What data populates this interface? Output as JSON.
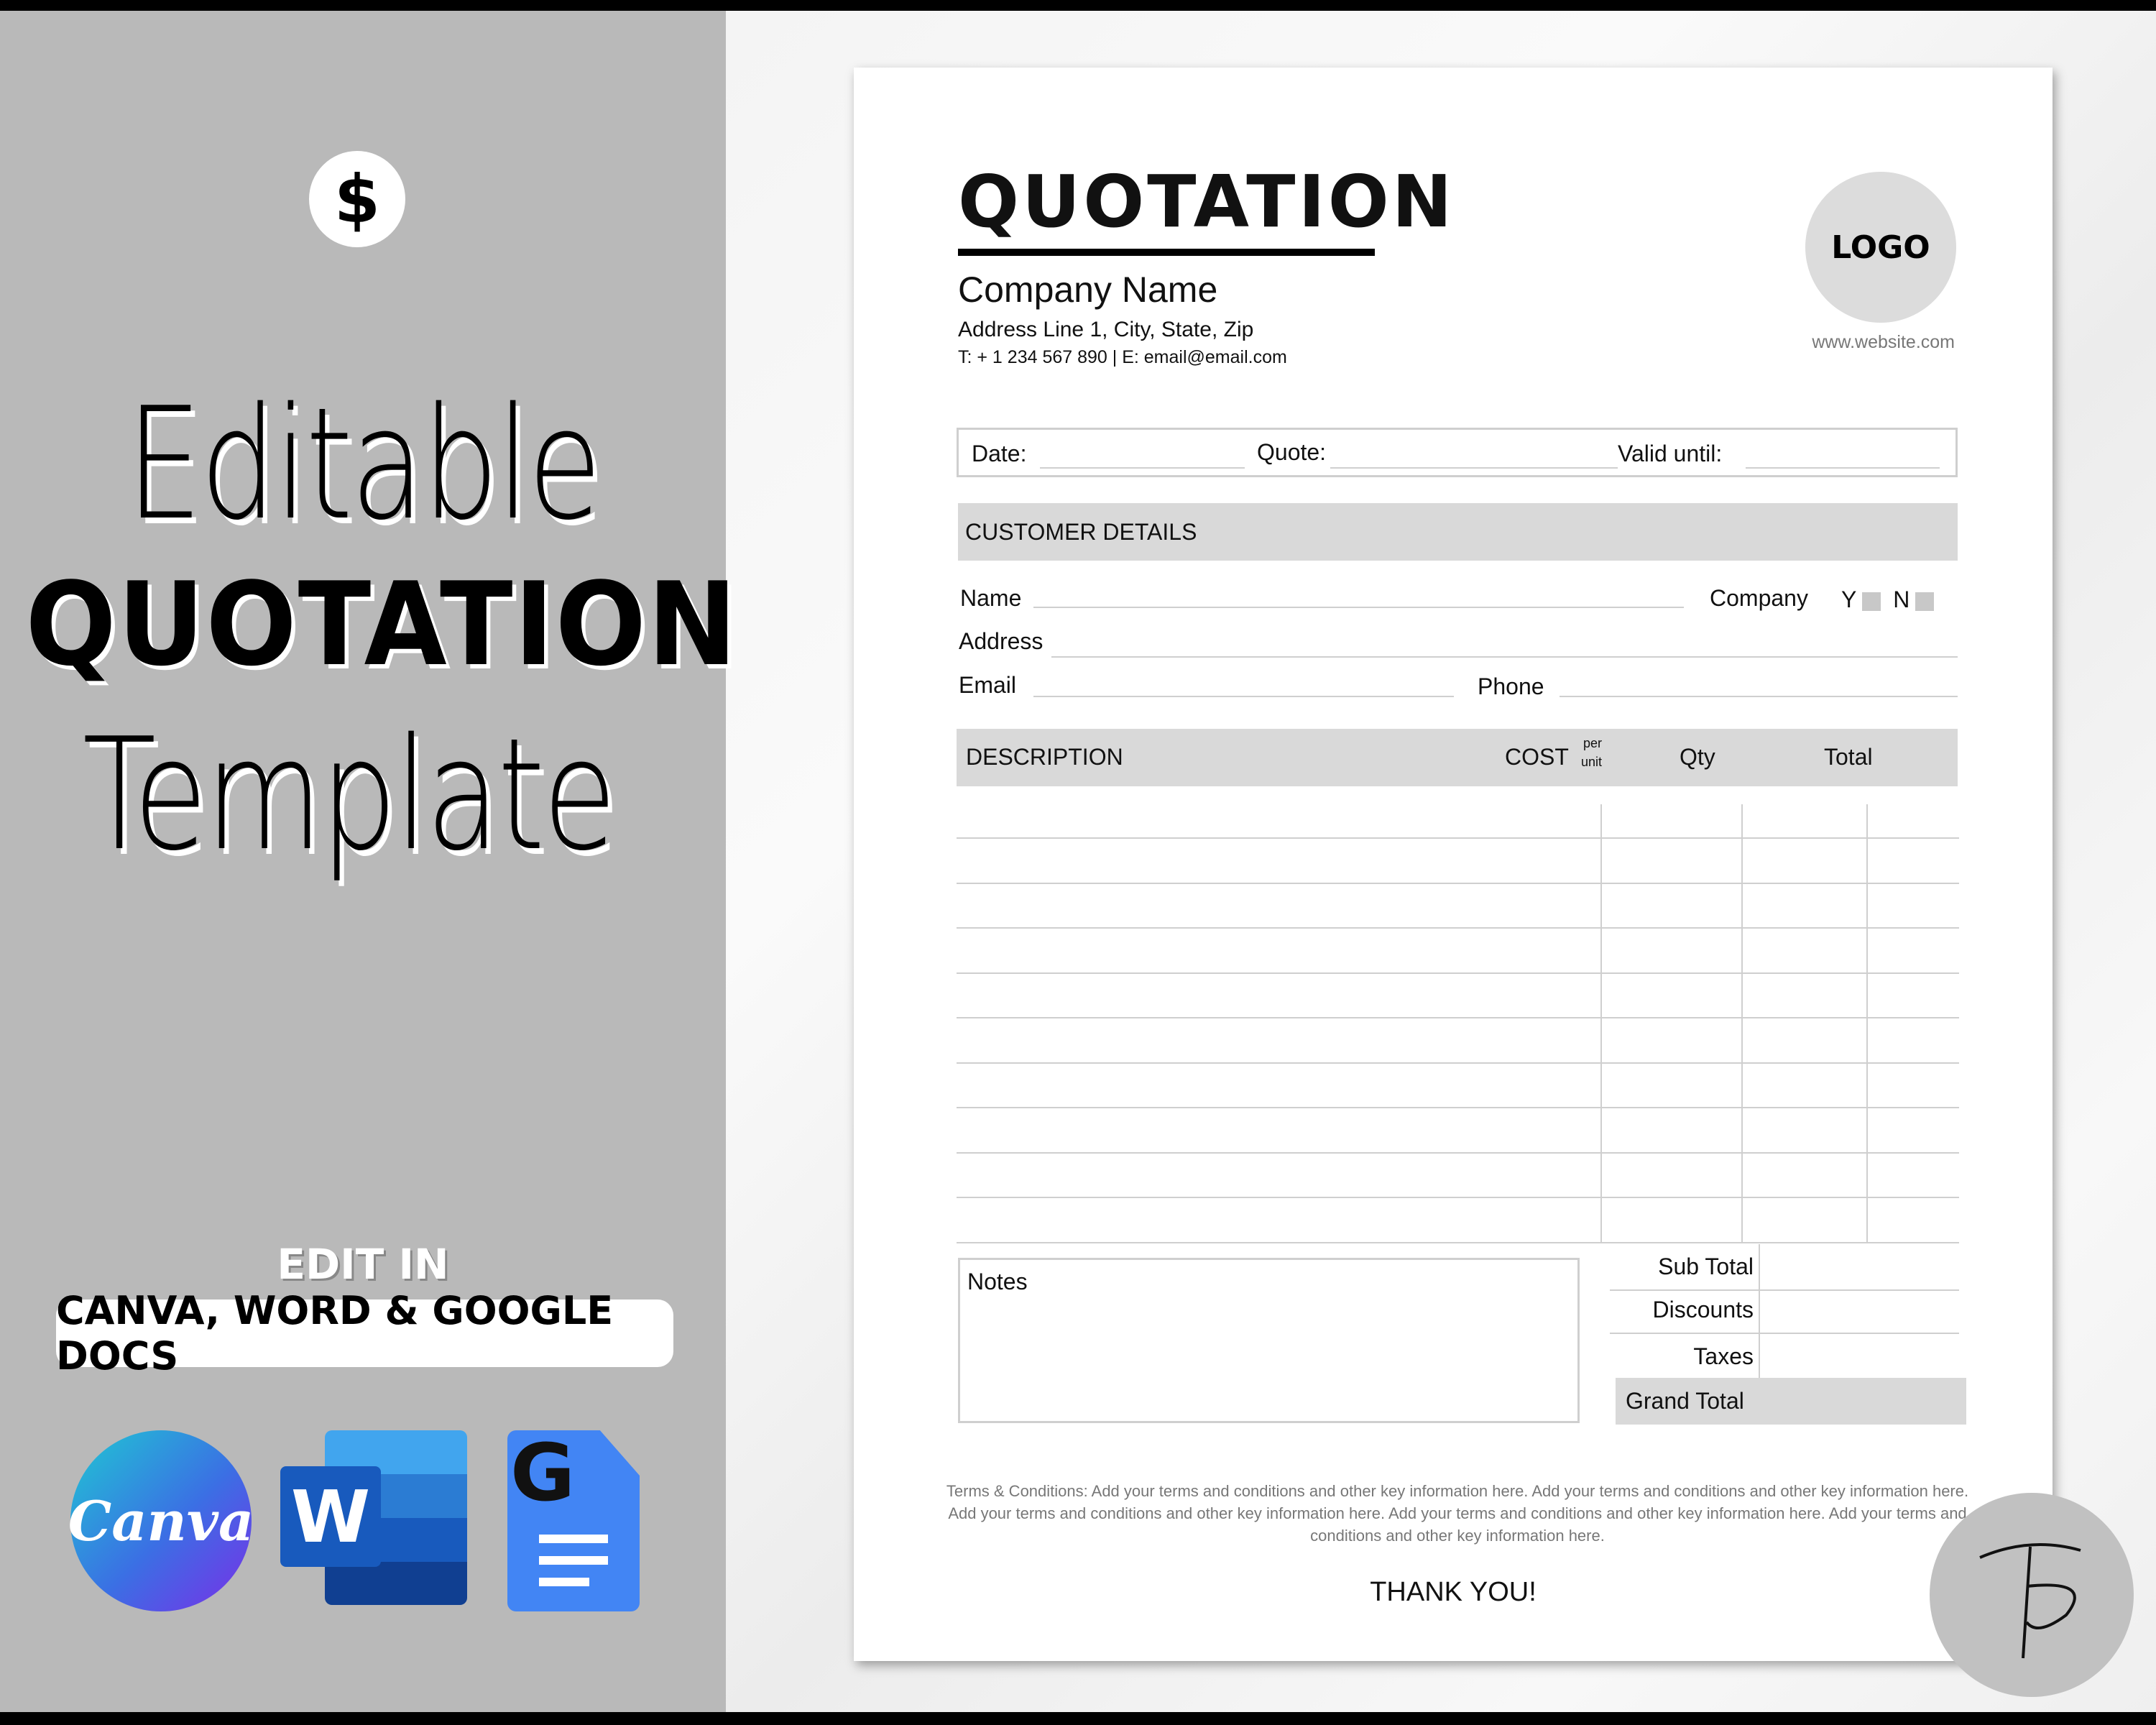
{
  "promo": {
    "icon": "dollar-icon",
    "dollar_symbol": "$",
    "line1": "Editable",
    "line2": "QUOTATION",
    "line3": "Template",
    "edit_in": "EDIT IN",
    "apps_label": "CANVA, WORD & GOOGLE DOCS",
    "app_icons": [
      "canva-logo",
      "microsoft-word-logo",
      "google-docs-logo"
    ],
    "canva_text": "Canva",
    "word_letter": "W",
    "docs_letter": "G"
  },
  "document": {
    "title": "QUOTATION",
    "company_name": "Company Name",
    "address": "Address Line 1, City, State, Zip",
    "contact": "T: + 1 234 567 890 |  E: email@email.com",
    "logo_label": "LOGO",
    "website": "www.website.com",
    "meta": {
      "date_label": "Date:",
      "quote_label": "Quote:",
      "valid_label": "Valid until:"
    },
    "customer": {
      "heading": "CUSTOMER DETAILS",
      "name_label": "Name",
      "company_label": "Company",
      "yes_label": "Y",
      "no_label": "N",
      "address_label": "Address",
      "email_label": "Email",
      "phone_label": "Phone"
    },
    "table": {
      "columns": [
        "DESCRIPTION",
        "COST",
        "Qty",
        "Total"
      ],
      "cost_sub": [
        "per",
        "unit"
      ]
    },
    "notes_label": "Notes",
    "totals": [
      "Sub Total",
      "Discounts",
      "Taxes",
      "Grand Total"
    ],
    "terms": "Terms & Conditions: Add your terms and conditions and other key information here. Add your terms and conditions and other key information here. Add your terms and conditions and other key information here. Add your terms and conditions and other key information here. Add your terms and conditions and other key information here.",
    "thanks": "THANK YOU!"
  },
  "colors": {
    "panel": "#b9b9b9",
    "header_fill": "#d9d9d9",
    "word_blue": "#2b7cd3",
    "docs_blue": "#4285f4"
  }
}
